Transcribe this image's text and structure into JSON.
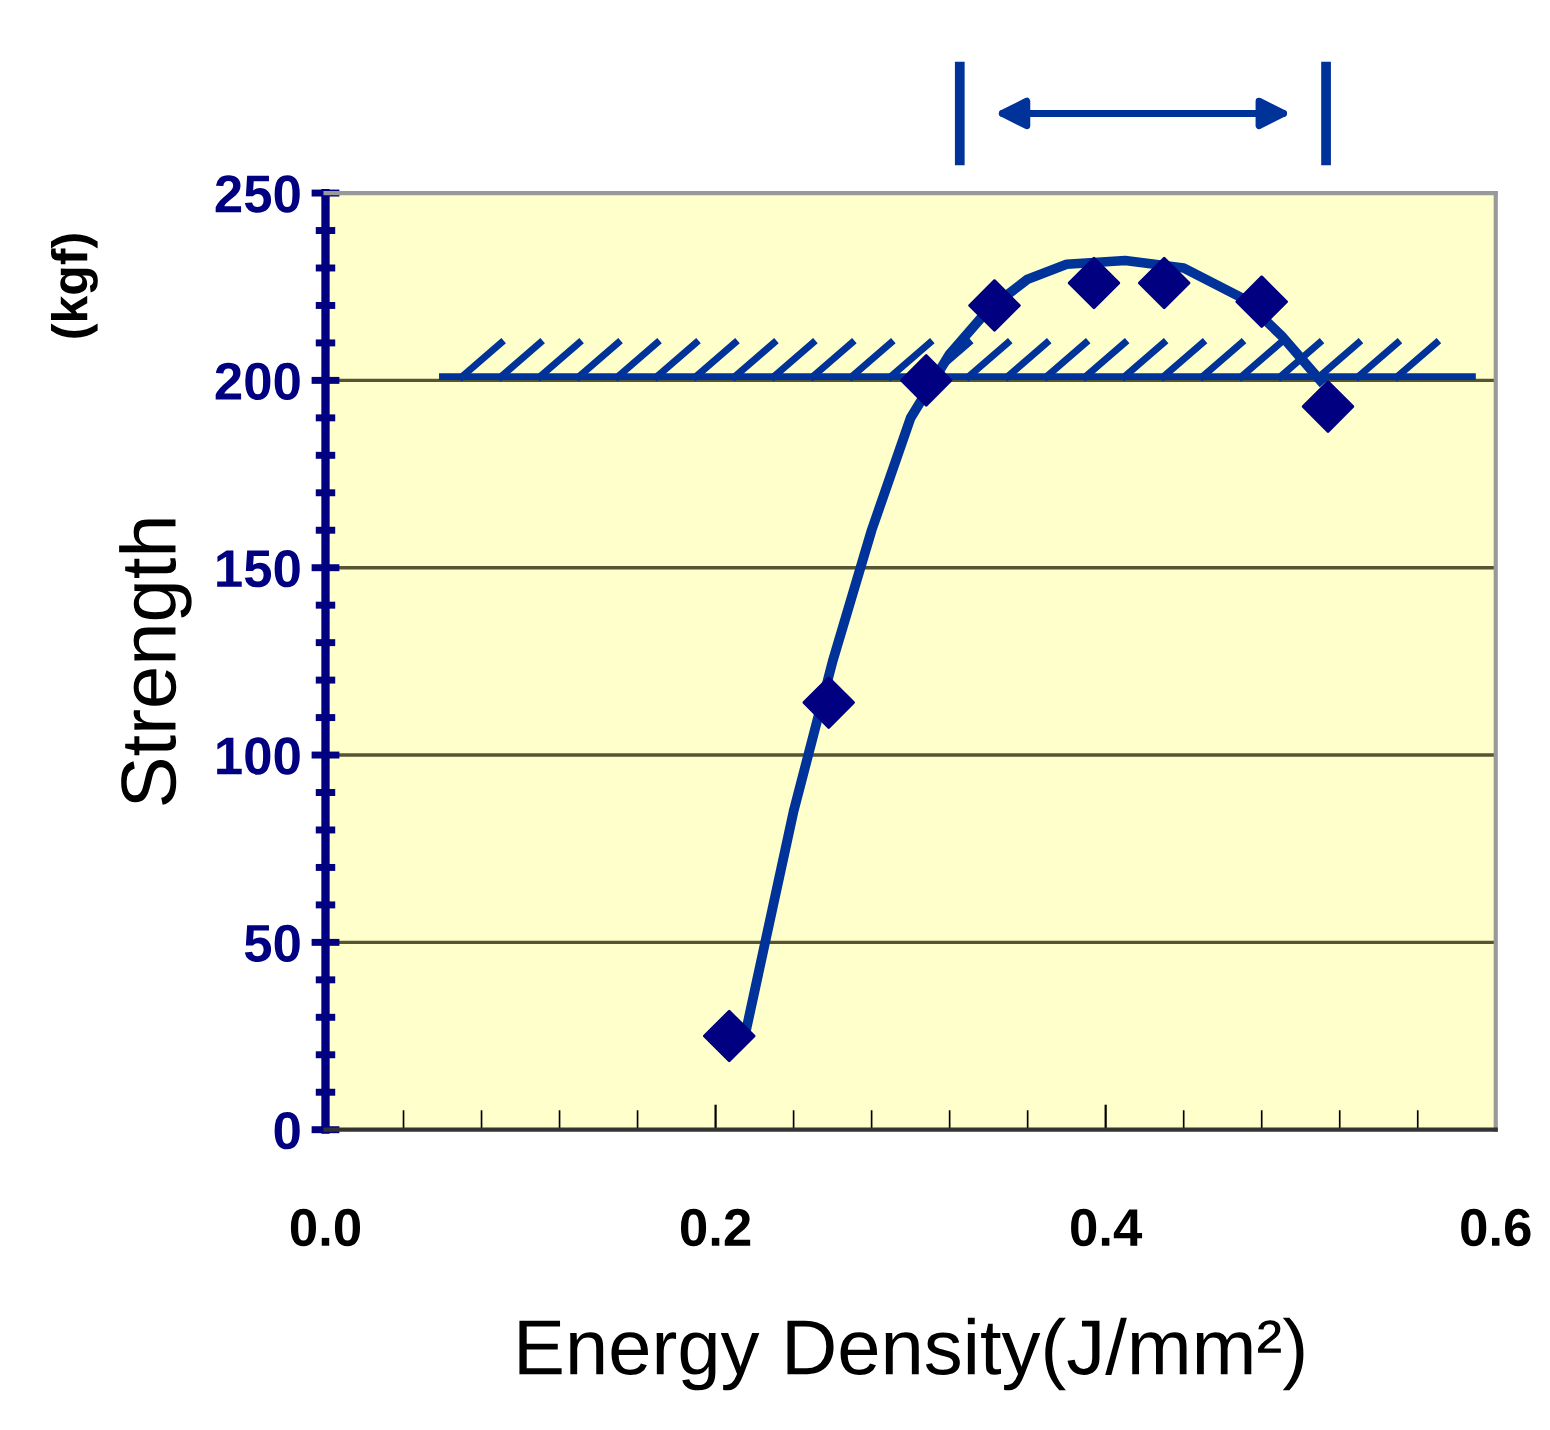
{
  "chart_data": {
    "type": "scatter",
    "xlabel": "Energy Density(J/mm²)",
    "ylabel": "Strength",
    "annotations": [
      "(kgf)"
    ],
    "series": [
      {
        "color": "#000080",
        "marker": "diamond",
        "x": [
          0.207,
          0.258,
          0.308,
          0.343,
          0.394,
          0.43,
          0.48,
          0.514
        ],
        "values": [
          25,
          114,
          200,
          220,
          226,
          226,
          221,
          193
        ]
      },
      {
        "type": "line",
        "color": "#003399",
        "marker": "none",
        "x": [
          0.215,
          0.24,
          0.26,
          0.28,
          0.3,
          0.32,
          0.34,
          0.36,
          0.38,
          0.41,
          0.44,
          0.47,
          0.49,
          0.51
        ],
        "values": [
          25,
          85,
          125,
          160,
          190,
          207,
          219,
          227,
          231,
          232,
          230,
          222,
          212,
          200
        ]
      }
    ],
    "ref_lines": [
      {
        "axis": "y",
        "value": 201,
        "color": "#003399"
      }
    ],
    "xlim": [
      0,
      0.6
    ],
    "ylim": [
      0,
      250
    ],
    "xticks": [
      {
        "value": 0,
        "label": "0.0"
      },
      {
        "value": 0.04,
        "label": null
      },
      {
        "value": 0.08,
        "label": null
      },
      {
        "value": 0.12,
        "label": null
      },
      {
        "value": 0.16,
        "label": null
      },
      {
        "value": 0.2,
        "label": "0.2"
      },
      {
        "value": 0.24,
        "label": null
      },
      {
        "value": 0.28,
        "label": null
      },
      {
        "value": 0.32,
        "label": null
      },
      {
        "value": 0.36,
        "label": null
      },
      {
        "value": 0.4,
        "label": "0.4"
      },
      {
        "value": 0.44,
        "label": null
      },
      {
        "value": 0.48,
        "label": null
      },
      {
        "value": 0.52,
        "label": null
      },
      {
        "value": 0.56,
        "label": null
      },
      {
        "value": 0.6,
        "label": "0.6"
      }
    ],
    "yticks": [
      0,
      {
        "value": 10,
        "label": null
      },
      {
        "value": 20,
        "label": null
      },
      {
        "value": 30,
        "label": null
      },
      {
        "value": 40,
        "label": null
      },
      50,
      {
        "value": 60,
        "label": null
      },
      {
        "value": 70,
        "label": null
      },
      {
        "value": 80,
        "label": null
      },
      {
        "value": 90,
        "label": null
      },
      100,
      {
        "value": 110,
        "label": null
      },
      {
        "value": 120,
        "label": null
      },
      {
        "value": 130,
        "label": null
      },
      {
        "value": 140,
        "label": null
      },
      150,
      {
        "value": 160,
        "label": null
      },
      {
        "value": 170,
        "label": null
      },
      {
        "value": 180,
        "label": null
      },
      {
        "value": 190,
        "label": null
      },
      200,
      {
        "value": 210,
        "label": null
      },
      {
        "value": 220,
        "label": null
      },
      {
        "value": 230,
        "label": null
      },
      {
        "value": 240,
        "label": null
      },
      250
    ],
    "grid": "y"
  }
}
